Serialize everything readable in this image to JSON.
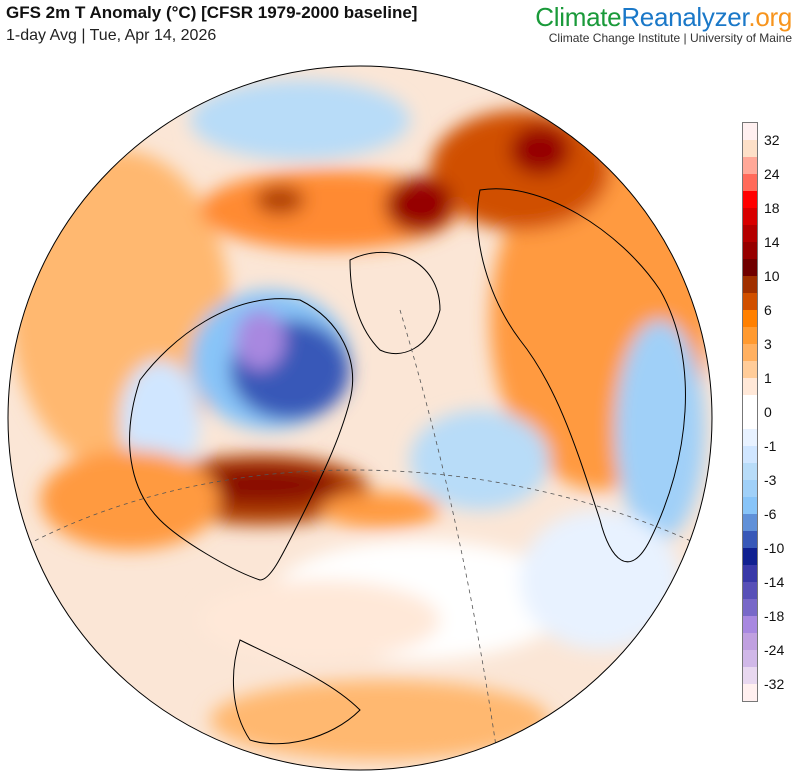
{
  "header": {
    "title": "GFS 2m T Anomaly (°C) [CFSR 1979-2000 baseline]",
    "subtitle": "1-day Avg | Tue, Apr 14, 2026"
  },
  "brand": {
    "part1": "Climate",
    "part2": "Reanalyzer",
    "part3": ".org",
    "institution": "Climate Change Institute | University of Maine"
  },
  "colorbar": {
    "colors": [
      "#fff0f0",
      "#fde0c8",
      "#ffa898",
      "#ff6a5a",
      "#ff0000",
      "#d80000",
      "#b40000",
      "#960000",
      "#700000",
      "#a03000",
      "#d05000",
      "#ff8000",
      "#ff9a30",
      "#ffb060",
      "#ffcc99",
      "#ffe8d8",
      "#ffffff",
      "#ffffff",
      "#e8f2ff",
      "#d0e6ff",
      "#b8dcf8",
      "#a0d0f8",
      "#88c4f8",
      "#6090d8",
      "#3858b8",
      "#102090",
      "#3838a8",
      "#5850b8",
      "#7868c8",
      "#a888e0",
      "#c0a0e0",
      "#d0b8e8",
      "#e8d8f0",
      "#fff0f0"
    ],
    "labels": [
      "32",
      "24",
      "18",
      "14",
      "10",
      "6",
      "3",
      "1",
      "0",
      "-1",
      "-3",
      "-6",
      "-10",
      "-14",
      "-18",
      "-24",
      "-32"
    ]
  }
}
